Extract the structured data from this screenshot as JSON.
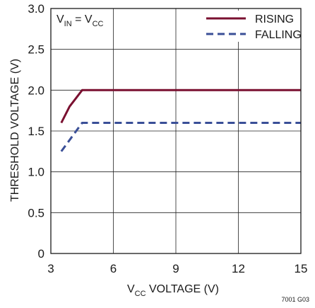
{
  "chart_data": {
    "type": "line",
    "annotation": {
      "main": "V",
      "sub1": "IN",
      "mid": " = V",
      "sub2": "CC"
    },
    "xlabel": {
      "main": "V",
      "sub": "CC",
      "rest": " VOLTAGE (V)"
    },
    "ylabel": "THRESHOLD VOLTAGE (V)",
    "xlim": [
      3,
      15
    ],
    "ylim": [
      0,
      3.0
    ],
    "xticks": [
      "3",
      "6",
      "9",
      "12",
      "15"
    ],
    "xtick_values": [
      3,
      6,
      9,
      12,
      15
    ],
    "yticks": [
      "0",
      "0.5",
      "1.0",
      "1.5",
      "2.0",
      "2.5",
      "3.0"
    ],
    "ytick_values": [
      0,
      0.5,
      1.0,
      1.5,
      2.0,
      2.5,
      3.0
    ],
    "grid": true,
    "legend_position": "top-right",
    "series": [
      {
        "name": "RISING",
        "color": "#7a1030",
        "style": "solid",
        "x": [
          3.5,
          3.9,
          4.2,
          4.5,
          15
        ],
        "y": [
          1.6,
          1.8,
          1.9,
          2.0,
          2.0
        ]
      },
      {
        "name": "FALLING",
        "color": "#3a4f97",
        "style": "dashed",
        "x": [
          3.5,
          4.5,
          15
        ],
        "y": [
          1.25,
          1.6,
          1.6
        ]
      }
    ],
    "figure_number": "7001 G03"
  }
}
